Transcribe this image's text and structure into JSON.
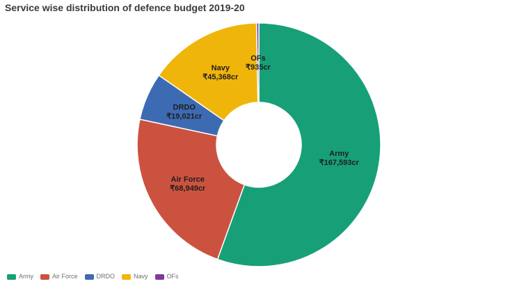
{
  "chart_data": {
    "type": "pie",
    "subtype": "donut",
    "title": "Service wise distribution of defence budget 2019-20",
    "categories": [
      "Army",
      "Air Force",
      "DRDO",
      "Navy",
      "OFs"
    ],
    "values": [
      167593,
      68949,
      19021,
      45368,
      935
    ],
    "value_labels": [
      "₹167,593cr",
      "₹68,949cr",
      "₹19,021cr",
      "₹45,368cr",
      "₹935cr"
    ],
    "colors": [
      "#17a077",
      "#cc5240",
      "#3d6bb3",
      "#f0b50a",
      "#7d3c98"
    ],
    "slice_border_color": "#ffffff",
    "legend_entries": [
      "Army",
      "Air Force",
      "DRDO",
      "Navy",
      "OFs"
    ],
    "legend_position": "bottom-left",
    "start_angle_deg": 0,
    "direction": "clockwise"
  }
}
